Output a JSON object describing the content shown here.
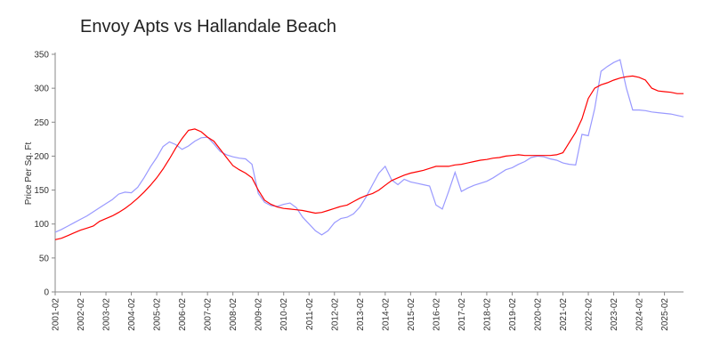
{
  "chart_data": {
    "type": "line",
    "title": "Envoy Apts vs Hallandale Beach",
    "y_label": "Price Per Sq. Ft",
    "x": [
      "2001-02",
      "2001-05",
      "2001-08",
      "2001-11",
      "2002-02",
      "2002-05",
      "2002-08",
      "2002-11",
      "2003-02",
      "2003-05",
      "2003-08",
      "2003-11",
      "2004-02",
      "2004-05",
      "2004-08",
      "2004-11",
      "2005-02",
      "2005-05",
      "2005-08",
      "2005-11",
      "2006-02",
      "2006-05",
      "2006-08",
      "2006-11",
      "2007-02",
      "2007-05",
      "2007-08",
      "2007-11",
      "2008-02",
      "2008-05",
      "2008-08",
      "2008-11",
      "2009-02",
      "2009-05",
      "2009-08",
      "2009-11",
      "2010-02",
      "2010-05",
      "2010-08",
      "2010-11",
      "2011-02",
      "2011-05",
      "2011-08",
      "2011-11",
      "2012-02",
      "2012-05",
      "2012-08",
      "2012-11",
      "2013-02",
      "2013-05",
      "2013-08",
      "2013-11",
      "2014-02",
      "2014-05",
      "2014-08",
      "2014-11",
      "2015-02",
      "2015-05",
      "2015-08",
      "2015-11",
      "2016-02",
      "2016-05",
      "2016-08",
      "2016-11",
      "2017-02",
      "2017-05",
      "2017-08",
      "2017-11",
      "2018-02",
      "2018-05",
      "2018-08",
      "2018-11",
      "2019-02",
      "2019-05",
      "2019-08",
      "2019-11",
      "2020-02",
      "2020-05",
      "2020-08",
      "2020-11",
      "2021-02",
      "2021-05",
      "2021-08",
      "2021-11",
      "2022-02",
      "2022-05",
      "2022-08",
      "2022-11",
      "2023-02",
      "2023-05",
      "2023-08",
      "2023-11",
      "2024-02",
      "2024-05",
      "2024-08",
      "2024-11",
      "2025-02",
      "2025-05",
      "2025-08",
      "2025-11"
    ],
    "series": [
      {
        "color": "#9999ff",
        "values": [
          88,
          92,
          97,
          102,
          107,
          112,
          118,
          124,
          130,
          136,
          144,
          147,
          146,
          154,
          168,
          184,
          198,
          214,
          221,
          217,
          210,
          215,
          222,
          227,
          228,
          218,
          207,
          202,
          199,
          197,
          196,
          188,
          145,
          132,
          127,
          126,
          129,
          131,
          124,
          110,
          100,
          90,
          84,
          90,
          102,
          108,
          110,
          115,
          125,
          140,
          158,
          175,
          185,
          165,
          158,
          166,
          162,
          160,
          158,
          156,
          128,
          122,
          148,
          176,
          148,
          153,
          157,
          160,
          163,
          168,
          174,
          180,
          183,
          188,
          192,
          198,
          200,
          199,
          196,
          194,
          190,
          188,
          187,
          232,
          230,
          270,
          325,
          332,
          338,
          342,
          300,
          268,
          268,
          267,
          265,
          264,
          263,
          262,
          260,
          258
        ]
      },
      {
        "color": "#ff0000",
        "values": [
          77,
          79,
          83,
          87,
          91,
          94,
          97,
          104,
          108,
          112,
          117,
          123,
          130,
          138,
          147,
          157,
          168,
          181,
          196,
          212,
          226,
          238,
          240,
          236,
          228,
          222,
          210,
          198,
          186,
          180,
          175,
          168,
          150,
          135,
          129,
          125,
          123,
          122,
          121,
          120,
          118,
          116,
          117,
          120,
          123,
          126,
          128,
          133,
          138,
          142,
          145,
          150,
          157,
          164,
          168,
          172,
          175,
          177,
          179,
          182,
          185,
          185,
          185,
          187,
          188,
          190,
          192,
          194,
          195,
          197,
          198,
          200,
          201,
          202,
          201,
          201,
          201,
          201,
          201,
          202,
          205,
          220,
          235,
          255,
          285,
          300,
          305,
          308,
          312,
          315,
          317,
          318,
          316,
          312,
          300,
          296,
          295,
          294,
          292,
          292
        ]
      }
    ],
    "xlim": [
      "2001-02",
      "2025-11"
    ],
    "xticks": [
      "2001-02",
      "2002-02",
      "2003-02",
      "2004-02",
      "2005-02",
      "2006-02",
      "2007-02",
      "2008-02",
      "2009-02",
      "2010-02",
      "2011-02",
      "2012-02",
      "2013-02",
      "2014-02",
      "2015-02",
      "2016-02",
      "2017-02",
      "2018-02",
      "2019-02",
      "2020-02",
      "2021-02",
      "2022-02",
      "2023-02",
      "2024-02",
      "2025-02"
    ],
    "ylim": [
      0,
      350
    ],
    "yticks": [
      0,
      50,
      100,
      150,
      200,
      250,
      300,
      350
    ]
  }
}
